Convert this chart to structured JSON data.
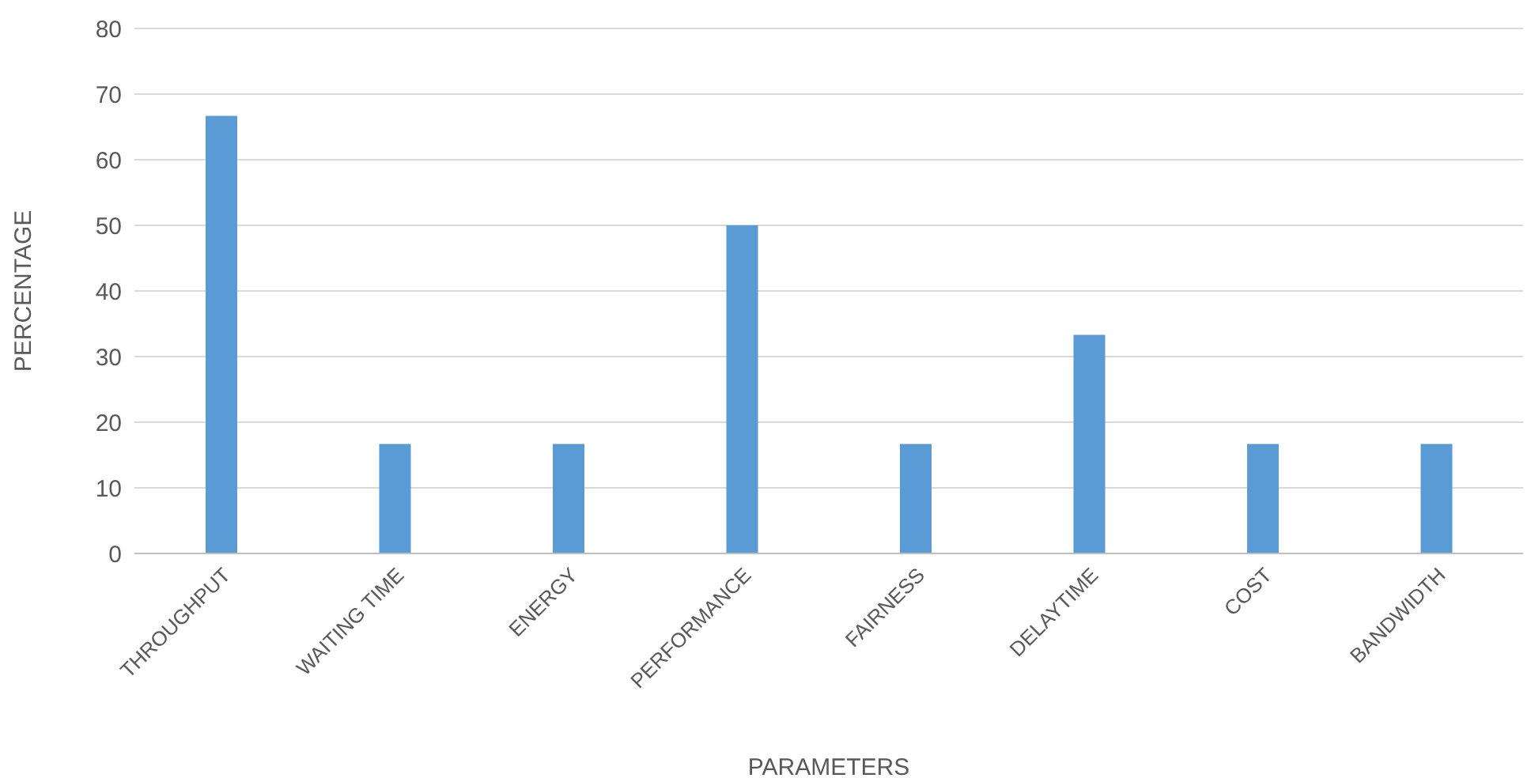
{
  "chart_data": {
    "type": "bar",
    "xlabel": "PARAMETERS",
    "ylabel": "PERCENTAGE",
    "categories": [
      "THROUGHPUT",
      "WAITING TIME",
      "ENERGY",
      "PERFORMANCE",
      "FAIRNESS",
      "DELAYTIME",
      "COST",
      "BANDWIDTH"
    ],
    "values": [
      66.7,
      16.7,
      16.7,
      50,
      16.7,
      33.3,
      16.7,
      16.7
    ],
    "color": "#5b9bd5",
    "ylim": [
      0,
      80
    ],
    "yticks": [
      0,
      10,
      20,
      30,
      40,
      50,
      60,
      70,
      80
    ],
    "grid": "y",
    "legend": false
  }
}
